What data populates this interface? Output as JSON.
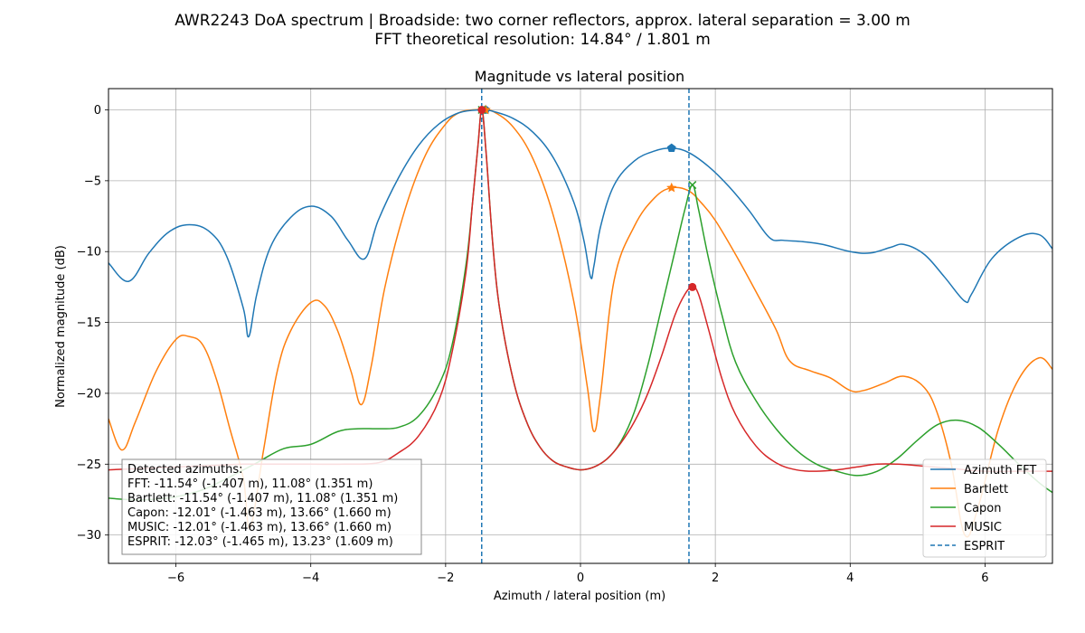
{
  "figure": {
    "suptitle_line1": "AWR2243 DoA spectrum | Broadside: two corner reflectors, approx. lateral separation = 3.00 m",
    "suptitle_line2": "FFT theoretical resolution: 14.84° / 1.801 m"
  },
  "chart_data": {
    "type": "line",
    "title": "Magnitude vs lateral position",
    "xlabel": "Azimuth / lateral position (m)",
    "ylabel": "Normalized magnitude (dB)",
    "xlim": [
      -7.0,
      7.0
    ],
    "ylim": [
      -32.0,
      1.5
    ],
    "xticks": [
      -6,
      -4,
      -2,
      0,
      2,
      4,
      6
    ],
    "xtick_labels": [
      "−6",
      "−4",
      "−2",
      "0",
      "2",
      "4",
      "6"
    ],
    "yticks": [
      0,
      -5,
      -10,
      -15,
      -20,
      -25,
      -30
    ],
    "ytick_labels": [
      "0",
      "−5",
      "−10",
      "−15",
      "−20",
      "−25",
      "−30"
    ],
    "grid": true,
    "legend_position": "lower-right",
    "series": [
      {
        "name": "Azimuth FFT",
        "color": "#1f77b4",
        "marker": "pentagon",
        "peaks": [
          [
            -1.407,
            0.0
          ],
          [
            1.351,
            -2.7
          ]
        ],
        "x": [
          -7.0,
          -6.7,
          -6.4,
          -6.1,
          -5.8,
          -5.5,
          -5.25,
          -5.0,
          -4.92,
          -4.8,
          -4.6,
          -4.3,
          -4.0,
          -3.7,
          -3.45,
          -3.2,
          -3.0,
          -2.7,
          -2.4,
          -2.1,
          -1.8,
          -1.5,
          -1.3,
          -1.0,
          -0.7,
          -0.4,
          -0.1,
          0.05,
          0.15,
          0.2,
          0.3,
          0.5,
          0.8,
          1.1,
          1.35,
          1.6,
          1.9,
          2.2,
          2.5,
          2.8,
          3.0,
          3.3,
          3.6,
          4.0,
          4.3,
          4.6,
          4.8,
          5.1,
          5.4,
          5.7,
          5.8,
          6.1,
          6.5,
          6.8,
          7.0
        ],
        "y": [
          -10.8,
          -12.1,
          -10.1,
          -8.6,
          -8.1,
          -8.6,
          -10.3,
          -14.0,
          -16.0,
          -13.0,
          -9.7,
          -7.6,
          -6.8,
          -7.5,
          -9.2,
          -10.5,
          -7.8,
          -4.8,
          -2.5,
          -1.0,
          -0.2,
          0.0,
          -0.1,
          -0.6,
          -1.6,
          -3.4,
          -6.5,
          -9.2,
          -11.8,
          -11.0,
          -8.2,
          -5.3,
          -3.6,
          -2.9,
          -2.7,
          -3.0,
          -4.0,
          -5.4,
          -7.1,
          -9.0,
          -9.2,
          -9.3,
          -9.5,
          -10.0,
          -10.1,
          -9.7,
          -9.5,
          -10.2,
          -11.8,
          -13.5,
          -13.0,
          -10.5,
          -9.0,
          -8.8,
          -9.8
        ]
      },
      {
        "name": "Bartlett",
        "color": "#ff7f0e",
        "marker": "star",
        "peaks": [
          [
            -1.407,
            0.0
          ],
          [
            1.351,
            -5.5
          ]
        ],
        "x": [
          -7.0,
          -6.8,
          -6.6,
          -6.3,
          -6.0,
          -5.8,
          -5.6,
          -5.4,
          -5.2,
          -5.0,
          -4.9,
          -4.7,
          -4.5,
          -4.3,
          -4.0,
          -3.8,
          -3.6,
          -3.4,
          -3.25,
          -3.1,
          -2.9,
          -2.6,
          -2.3,
          -2.0,
          -1.8,
          -1.6,
          -1.45,
          -1.3,
          -1.0,
          -0.7,
          -0.4,
          -0.1,
          0.1,
          0.2,
          0.3,
          0.5,
          0.8,
          1.1,
          1.35,
          1.6,
          1.8,
          2.0,
          2.3,
          2.6,
          2.9,
          3.1,
          3.4,
          3.7,
          4.0,
          4.2,
          4.5,
          4.8,
          5.1,
          5.3,
          5.5,
          5.7,
          5.9,
          6.2,
          6.5,
          6.8,
          7.0
        ],
        "y": [
          -21.8,
          -24.0,
          -22.0,
          -18.5,
          -16.2,
          -16.0,
          -16.6,
          -19.0,
          -22.5,
          -26.0,
          -29.5,
          -24.0,
          -18.5,
          -15.6,
          -13.6,
          -13.8,
          -15.6,
          -18.5,
          -20.8,
          -18.0,
          -12.5,
          -7.0,
          -3.2,
          -1.0,
          -0.2,
          0.0,
          0.0,
          -0.1,
          -1.2,
          -3.5,
          -7.5,
          -13.5,
          -19.5,
          -22.7,
          -20.0,
          -12.0,
          -8.2,
          -6.2,
          -5.5,
          -5.7,
          -6.6,
          -7.8,
          -10.2,
          -12.8,
          -15.5,
          -17.7,
          -18.4,
          -18.9,
          -19.8,
          -19.8,
          -19.3,
          -18.8,
          -19.6,
          -21.5,
          -25.0,
          -30.0,
          -28.0,
          -22.5,
          -19.0,
          -17.5,
          -18.3
        ]
      },
      {
        "name": "Capon",
        "color": "#2ca02c",
        "marker": "x",
        "peaks": [
          [
            -1.463,
            0.0
          ],
          [
            1.66,
            -5.3
          ]
        ],
        "x": [
          -7.0,
          -6.7,
          -6.4,
          -6.0,
          -5.6,
          -5.2,
          -4.8,
          -4.4,
          -4.0,
          -3.6,
          -3.3,
          -3.0,
          -2.7,
          -2.4,
          -2.1,
          -1.9,
          -1.7,
          -1.6,
          -1.52,
          -1.463,
          -1.4,
          -1.3,
          -1.2,
          -1.0,
          -0.8,
          -0.6,
          -0.4,
          -0.2,
          0.0,
          0.2,
          0.4,
          0.6,
          0.8,
          1.0,
          1.2,
          1.4,
          1.55,
          1.66,
          1.75,
          1.9,
          2.1,
          2.3,
          2.6,
          2.9,
          3.2,
          3.5,
          3.8,
          4.1,
          4.4,
          4.7,
          5.0,
          5.3,
          5.6,
          5.9,
          6.2,
          6.5,
          6.8,
          7.0
        ],
        "y": [
          -27.4,
          -27.5,
          -27.5,
          -27.3,
          -26.8,
          -25.9,
          -24.9,
          -23.9,
          -23.6,
          -22.7,
          -22.5,
          -22.5,
          -22.4,
          -21.6,
          -19.4,
          -16.5,
          -11.0,
          -6.5,
          -2.5,
          0.0,
          -3.0,
          -9.5,
          -14.0,
          -19.0,
          -22.0,
          -23.8,
          -24.8,
          -25.2,
          -25.4,
          -25.2,
          -24.6,
          -23.4,
          -21.3,
          -18.0,
          -14.0,
          -10.0,
          -7.0,
          -5.3,
          -7.0,
          -10.5,
          -14.5,
          -17.8,
          -20.5,
          -22.5,
          -24.0,
          -25.0,
          -25.5,
          -25.8,
          -25.5,
          -24.6,
          -23.3,
          -22.2,
          -21.9,
          -22.4,
          -23.6,
          -25.0,
          -26.3,
          -27.0
        ]
      },
      {
        "name": "MUSIC",
        "color": "#d62728",
        "marker": "circle",
        "peaks": [
          [
            -1.463,
            0.0
          ],
          [
            1.66,
            -12.5
          ]
        ],
        "x": [
          -7.0,
          -6.5,
          -6.0,
          -5.5,
          -5.0,
          -4.5,
          -4.0,
          -3.5,
          -3.0,
          -2.7,
          -2.4,
          -2.1,
          -1.9,
          -1.7,
          -1.6,
          -1.52,
          -1.463,
          -1.4,
          -1.3,
          -1.2,
          -1.0,
          -0.8,
          -0.6,
          -0.4,
          -0.2,
          0.0,
          0.2,
          0.4,
          0.6,
          0.8,
          1.0,
          1.2,
          1.4,
          1.55,
          1.66,
          1.75,
          1.9,
          2.1,
          2.3,
          2.6,
          2.9,
          3.2,
          3.5,
          3.8,
          4.1,
          4.4,
          4.7,
          5.0,
          5.5,
          6.0,
          6.5,
          7.0
        ],
        "y": [
          -25.4,
          -25.3,
          -25.2,
          -25.1,
          -25.0,
          -25.0,
          -25.0,
          -25.0,
          -24.9,
          -24.2,
          -23.0,
          -20.5,
          -17.0,
          -11.5,
          -6.5,
          -2.5,
          0.0,
          -3.0,
          -9.5,
          -14.0,
          -19.0,
          -22.0,
          -23.8,
          -24.8,
          -25.2,
          -25.4,
          -25.2,
          -24.6,
          -23.5,
          -22.0,
          -20.0,
          -17.4,
          -14.5,
          -13.0,
          -12.5,
          -13.0,
          -15.5,
          -19.0,
          -21.5,
          -23.7,
          -24.9,
          -25.4,
          -25.5,
          -25.4,
          -25.2,
          -25.0,
          -25.0,
          -25.1,
          -25.3,
          -25.5,
          -25.5,
          -25.5
        ]
      }
    ],
    "vlines": {
      "name": "ESPRIT",
      "color": "#1f77b4",
      "style": "dashed",
      "x": [
        -1.465,
        1.609
      ]
    },
    "annotation": {
      "heading": "Detected azimuths:",
      "lines": [
        "FFT: -11.54° (-1.407 m), 11.08° (1.351 m)",
        "Bartlett: -11.54° (-1.407 m), 11.08° (1.351 m)",
        "Capon: -12.01° (-1.463 m), 13.66° (1.660 m)",
        "MUSIC: -12.01° (-1.463 m), 13.66° (1.660 m)",
        "ESPRIT: -12.03° (-1.465 m), 13.23° (1.609 m)"
      ]
    }
  }
}
